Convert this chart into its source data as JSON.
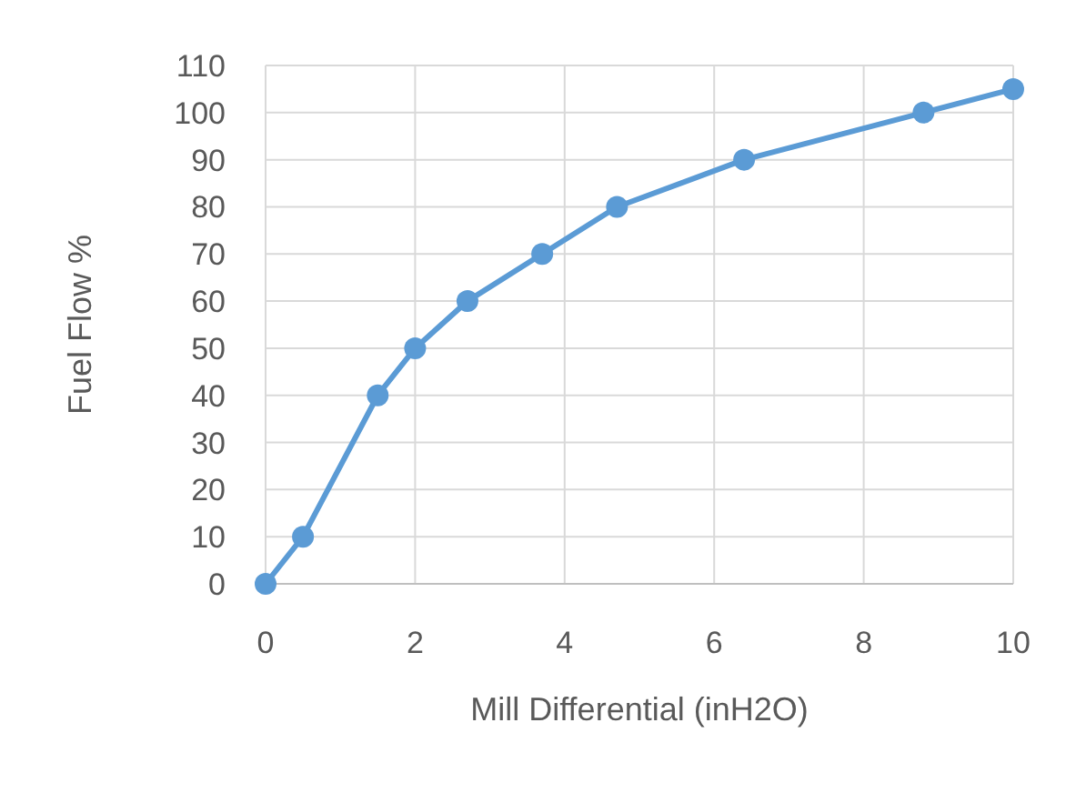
{
  "chart_data": {
    "type": "line",
    "xlabel": "Mill Differential (inH2O)",
    "ylabel": "Fuel Flow %",
    "x": [
      0,
      0.5,
      1.5,
      2,
      2.7,
      3.7,
      4.7,
      6.4,
      8.8,
      10
    ],
    "series": [
      {
        "color": "#5b9bd5",
        "values": [
          0,
          10,
          40,
          50,
          60,
          70,
          80,
          90,
          100,
          105
        ]
      }
    ],
    "xlim": [
      0,
      10
    ],
    "xticks": [
      0,
      2,
      4,
      6,
      8,
      10
    ],
    "ylim": [
      0,
      110
    ],
    "yticks": [
      0,
      10,
      20,
      30,
      40,
      50,
      60,
      70,
      80,
      90,
      100,
      110
    ],
    "grid": true,
    "marker": "circle",
    "line_style": "solid"
  }
}
